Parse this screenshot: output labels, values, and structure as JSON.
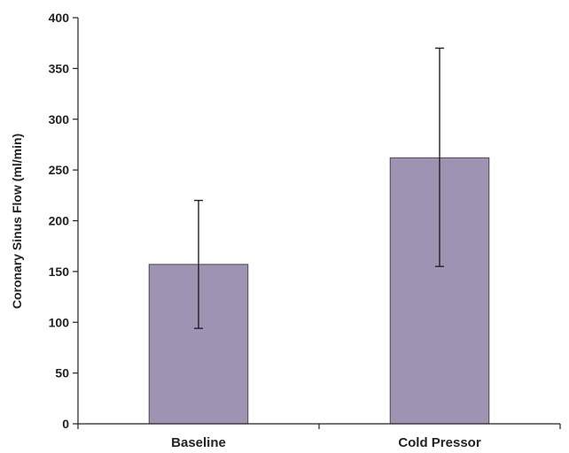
{
  "chart_data": {
    "type": "bar",
    "title": "",
    "xlabel": "",
    "ylabel": "Coronary Sinus Flow (ml/min)",
    "ylim": [
      0,
      400
    ],
    "yticks": [
      0,
      50,
      100,
      150,
      200,
      250,
      300,
      350,
      400
    ],
    "grid": false,
    "legend": "none",
    "categories": [
      "Baseline",
      "Cold Pressor"
    ],
    "values": [
      157,
      262
    ],
    "error_low": [
      94,
      155
    ],
    "error_high": [
      220,
      370
    ],
    "colors": {
      "bar_fill": "#9E93B2",
      "bar_stroke": "#4a4a4a",
      "axis": "#222222",
      "error_bar": "#222222"
    }
  }
}
